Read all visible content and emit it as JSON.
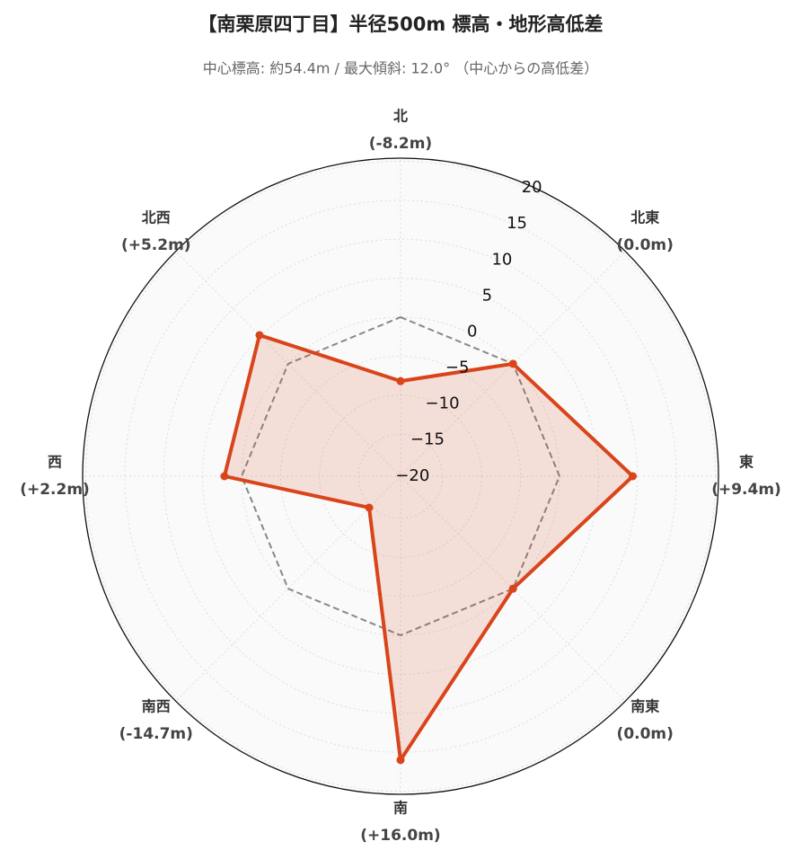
{
  "chart_data": {
    "type": "radar",
    "title": "【南栗原四丁目】半径500m 標高・地形高低差",
    "subtitle": "中心標高: 約54.4m / 最大傾斜: 12.0° （中心からの高低差）",
    "categories": [
      "北",
      "北東",
      "東",
      "南東",
      "南",
      "南西",
      "西",
      "北西"
    ],
    "values": [
      -8.2,
      0.0,
      9.4,
      0.0,
      16.0,
      -14.7,
      2.2,
      5.2
    ],
    "value_labels": [
      "(-8.2m)",
      "(0.0m)",
      "(+9.4m)",
      "(0.0m)",
      "(+16.0m)",
      "(-14.7m)",
      "(+2.2m)",
      "(+5.2m)"
    ],
    "color": "#d9441b",
    "reference_value": 0,
    "ylim": [
      -20.4,
      20.4
    ],
    "yticks": [
      {
        "value": -20,
        "label": "−20"
      },
      {
        "value": -15,
        "label": "−15"
      },
      {
        "value": -10,
        "label": "−10"
      },
      {
        "value": -5,
        "label": "−5"
      },
      0,
      5,
      10,
      15,
      20
    ],
    "grid": true
  }
}
